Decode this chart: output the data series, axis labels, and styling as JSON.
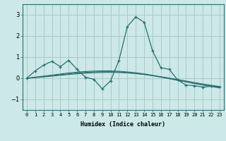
{
  "x": [
    0,
    1,
    2,
    3,
    4,
    5,
    6,
    7,
    8,
    9,
    10,
    11,
    12,
    13,
    14,
    15,
    16,
    17,
    18,
    19,
    20,
    21,
    22,
    23
  ],
  "y_main": [
    0.0,
    0.35,
    0.62,
    0.8,
    0.55,
    0.85,
    0.42,
    0.05,
    -0.05,
    -0.5,
    -0.12,
    0.85,
    2.45,
    2.9,
    2.65,
    1.3,
    0.5,
    0.42,
    -0.08,
    -0.32,
    -0.35,
    -0.42,
    -0.38,
    -0.4
  ],
  "y_line1": [
    0.0,
    0.03,
    0.06,
    0.1,
    0.14,
    0.18,
    0.21,
    0.24,
    0.26,
    0.27,
    0.28,
    0.27,
    0.25,
    0.22,
    0.18,
    0.13,
    0.07,
    0.01,
    -0.06,
    -0.13,
    -0.2,
    -0.27,
    -0.33,
    -0.39
  ],
  "y_line2": [
    0.0,
    0.04,
    0.08,
    0.13,
    0.17,
    0.21,
    0.25,
    0.28,
    0.3,
    0.31,
    0.31,
    0.3,
    0.27,
    0.23,
    0.18,
    0.12,
    0.05,
    -0.02,
    -0.1,
    -0.17,
    -0.24,
    -0.31,
    -0.37,
    -0.43
  ],
  "y_line3": [
    0.0,
    0.05,
    0.1,
    0.15,
    0.2,
    0.25,
    0.29,
    0.32,
    0.34,
    0.35,
    0.35,
    0.33,
    0.3,
    0.26,
    0.21,
    0.14,
    0.07,
    -0.01,
    -0.09,
    -0.17,
    -0.25,
    -0.32,
    -0.39,
    -0.46
  ],
  "bg_color": "#cce8e8",
  "line_color": "#2a6e6e",
  "grid_color": "#aacaca",
  "xlabel": "Humidex (Indice chaleur)",
  "ylim": [
    -1.5,
    3.5
  ],
  "yticks": [
    -1,
    0,
    1,
    2,
    3
  ],
  "xlim": [
    -0.5,
    23.5
  ]
}
